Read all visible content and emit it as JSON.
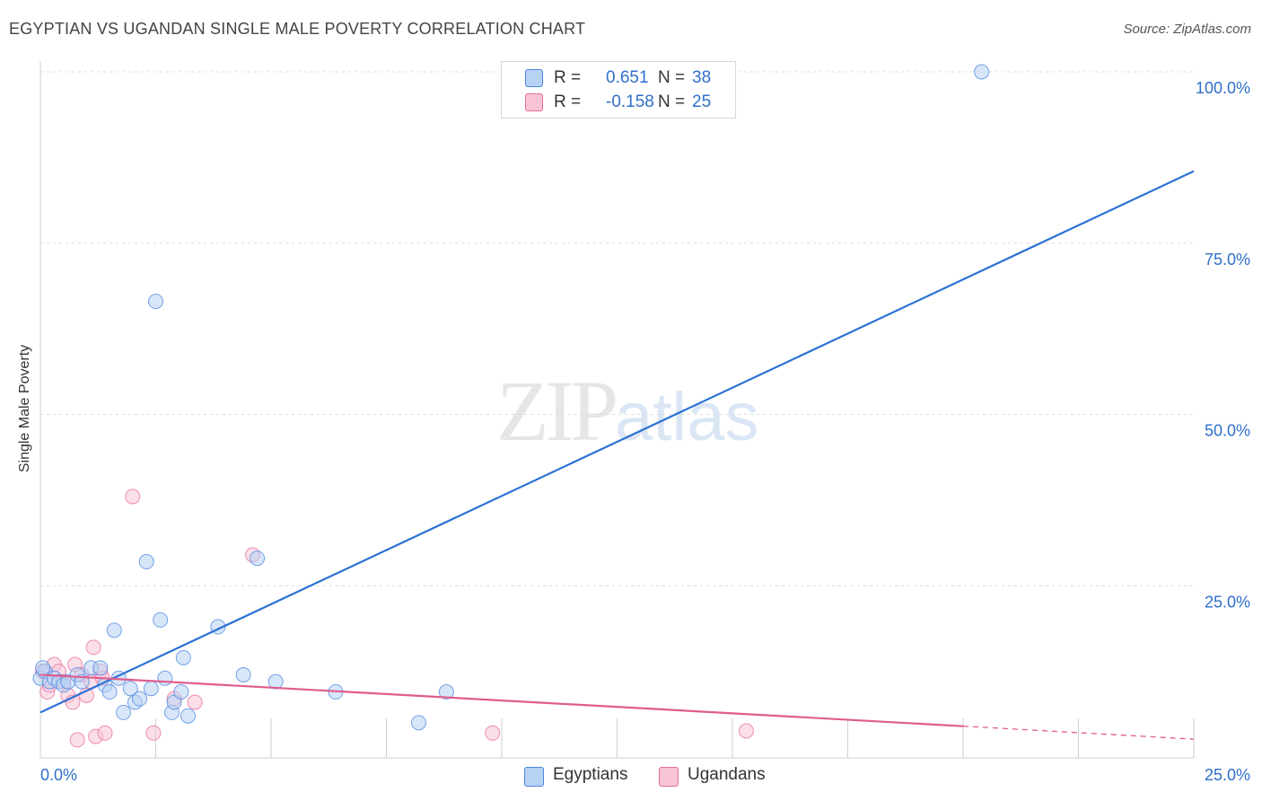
{
  "header": {
    "title": "EGYPTIAN VS UGANDAN SINGLE MALE POVERTY CORRELATION CHART",
    "source": "Source: ZipAtlas.com"
  },
  "watermark": {
    "zip": "ZIP",
    "atlas": "atlas"
  },
  "colors": {
    "egyptians": "#4a86e0",
    "egyptians_fill": "#b8d2f4",
    "ugandans": "#e86b98",
    "ugandans_fill": "#f8c4d6"
  },
  "legend_top": {
    "rows": [
      {
        "r_label": "R =",
        "r_value": "0.651",
        "n_label": "N =",
        "n_value": "38"
      },
      {
        "r_label": "R =",
        "r_value": "-0.158",
        "n_label": "N =",
        "n_value": "25"
      }
    ]
  },
  "legend_bottom": {
    "egyptians": "Egyptians",
    "ugandans": "Ugandans"
  },
  "chart_data": {
    "type": "scatter",
    "title": "EGYPTIAN VS UGANDAN SINGLE MALE POVERTY CORRELATION CHART",
    "ylabel": "Single Male Poverty",
    "xlabel": "",
    "xlim": [
      0,
      25
    ],
    "ylim": [
      0,
      102
    ],
    "x_tick_labels": {
      "left": "0.0%",
      "right": "25.0%"
    },
    "y_ticks": [
      {
        "value": 100,
        "label": "100.0%"
      },
      {
        "value": 75,
        "label": "75.0%"
      },
      {
        "value": 50,
        "label": "50.0%"
      },
      {
        "value": 25,
        "label": "25.0%"
      }
    ],
    "grid": true,
    "series": [
      {
        "name": "Egyptians",
        "r": 0.651,
        "n": 38,
        "points": [
          [
            0.0,
            11.5
          ],
          [
            0.1,
            12.5
          ],
          [
            0.2,
            11.0
          ],
          [
            0.3,
            11.5
          ],
          [
            0.4,
            11.0
          ],
          [
            0.5,
            10.5
          ],
          [
            0.6,
            11.0
          ],
          [
            0.8,
            12.0
          ],
          [
            0.9,
            11.0
          ],
          [
            1.1,
            13.0
          ],
          [
            1.3,
            13.0
          ],
          [
            1.4,
            10.5
          ],
          [
            1.5,
            9.5
          ],
          [
            1.6,
            18.5
          ],
          [
            1.7,
            11.5
          ],
          [
            1.8,
            6.5
          ],
          [
            1.95,
            10.0
          ],
          [
            2.05,
            8.0
          ],
          [
            2.15,
            8.5
          ],
          [
            2.3,
            28.5
          ],
          [
            2.4,
            10.0
          ],
          [
            2.5,
            66.5
          ],
          [
            2.6,
            20.0
          ],
          [
            2.7,
            11.5
          ],
          [
            2.85,
            6.5
          ],
          [
            2.9,
            8.0
          ],
          [
            3.05,
            9.5
          ],
          [
            3.1,
            14.5
          ],
          [
            3.2,
            6.0
          ],
          [
            3.85,
            19.0
          ],
          [
            4.4,
            12.0
          ],
          [
            4.7,
            29.0
          ],
          [
            5.1,
            11.0
          ],
          [
            6.4,
            9.5
          ],
          [
            8.2,
            5.0
          ],
          [
            8.8,
            9.5
          ],
          [
            20.4,
            100.0
          ],
          [
            0.05,
            13.0
          ]
        ]
      },
      {
        "name": "Ugandans",
        "r": -0.158,
        "n": 25,
        "points": [
          [
            0.05,
            12.5
          ],
          [
            0.15,
            9.5
          ],
          [
            0.3,
            13.5
          ],
          [
            0.4,
            12.5
          ],
          [
            0.5,
            11.0
          ],
          [
            0.6,
            9.0
          ],
          [
            0.7,
            8.0
          ],
          [
            0.75,
            13.5
          ],
          [
            0.8,
            2.5
          ],
          [
            0.9,
            12.0
          ],
          [
            1.0,
            9.0
          ],
          [
            1.1,
            11.0
          ],
          [
            1.15,
            16.0
          ],
          [
            1.2,
            3.0
          ],
          [
            1.3,
            12.5
          ],
          [
            1.4,
            3.5
          ],
          [
            2.0,
            38.0
          ],
          [
            2.45,
            3.5
          ],
          [
            2.9,
            8.5
          ],
          [
            3.35,
            8.0
          ],
          [
            4.6,
            29.5
          ],
          [
            9.8,
            3.5
          ],
          [
            15.3,
            3.8
          ],
          [
            0.2,
            10.5
          ],
          [
            1.35,
            11.5
          ]
        ]
      }
    ],
    "trend_lines": [
      {
        "series": "Egyptians",
        "x0": 0,
        "y0": 6.5,
        "x1": 25,
        "y1": 85.5,
        "style": "solid"
      },
      {
        "series": "Ugandans",
        "x0": 0,
        "y0": 12.0,
        "x1": 20,
        "y1": 4.5,
        "style": "solid"
      },
      {
        "series": "Ugandans",
        "x0": 20,
        "y0": 4.5,
        "x1": 25,
        "y1": 2.6,
        "style": "dashed"
      }
    ]
  }
}
